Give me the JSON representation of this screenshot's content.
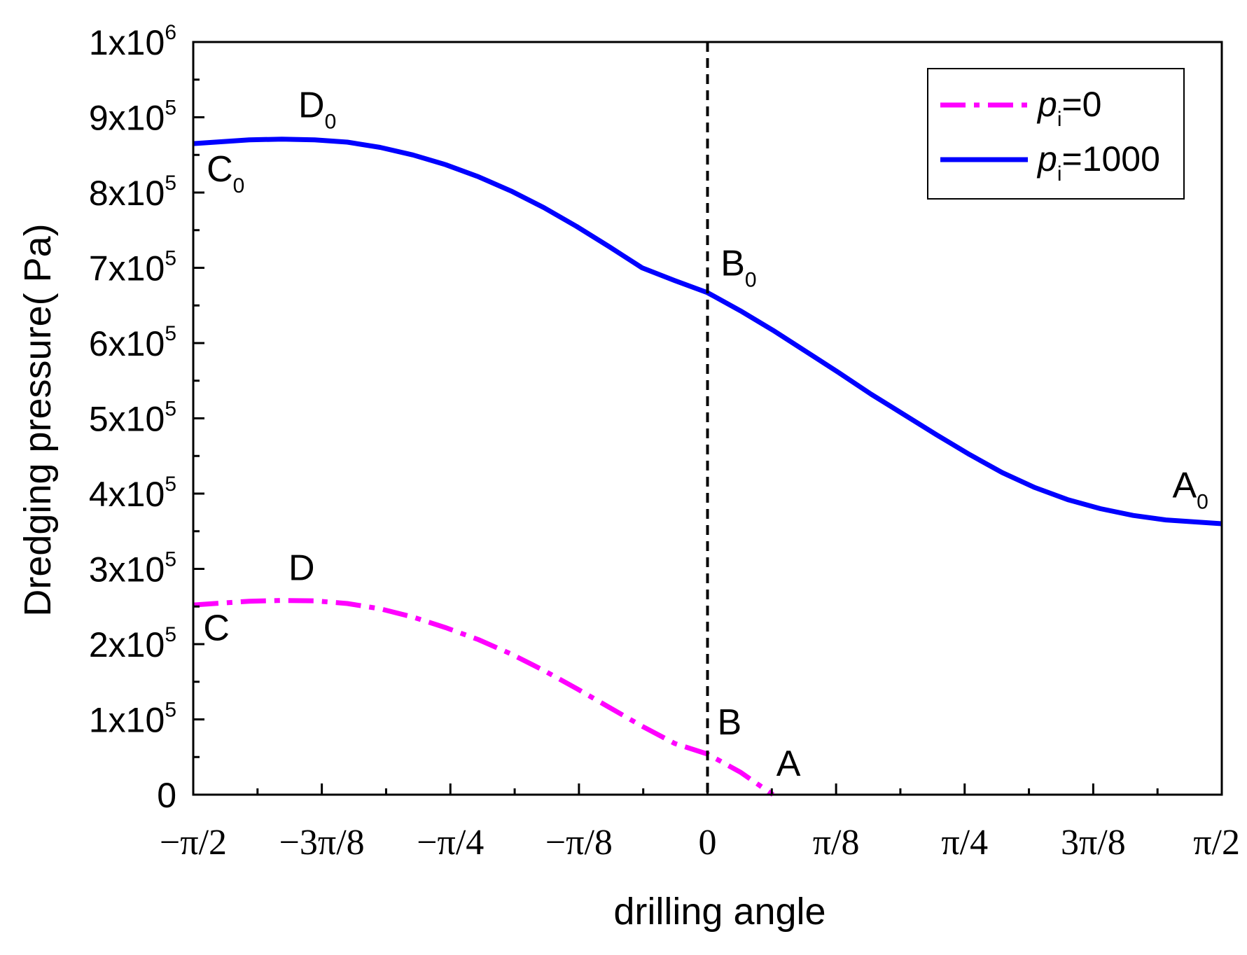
{
  "chart_data": {
    "type": "line",
    "xlabel": "drilling angle",
    "ylabel": "Dredging pressure( Pa)",
    "xlim": [
      -1.5708,
      1.5708
    ],
    "ylim": [
      0,
      1000000
    ],
    "x_ticks": [
      {
        "value": -1.5708,
        "label": "−π/2"
      },
      {
        "value": -1.1781,
        "label": "−3π/8"
      },
      {
        "value": -0.7854,
        "label": "−π/4"
      },
      {
        "value": -0.3927,
        "label": "−π/8"
      },
      {
        "value": 0,
        "label": "0"
      },
      {
        "value": 0.3927,
        "label": "π/8"
      },
      {
        "value": 0.7854,
        "label": "π/4"
      },
      {
        "value": 1.1781,
        "label": "3π/8"
      },
      {
        "value": 1.5708,
        "label": "π/2"
      }
    ],
    "y_ticks": [
      {
        "value": 0,
        "mantissa": "0",
        "exp": ""
      },
      {
        "value": 100000,
        "mantissa": "1x10",
        "exp": "5"
      },
      {
        "value": 200000,
        "mantissa": "2x10",
        "exp": "5"
      },
      {
        "value": 300000,
        "mantissa": "3x10",
        "exp": "5"
      },
      {
        "value": 400000,
        "mantissa": "4x10",
        "exp": "5"
      },
      {
        "value": 500000,
        "mantissa": "5x10",
        "exp": "5"
      },
      {
        "value": 600000,
        "mantissa": "6x10",
        "exp": "5"
      },
      {
        "value": 700000,
        "mantissa": "7x10",
        "exp": "5"
      },
      {
        "value": 800000,
        "mantissa": "8x10",
        "exp": "5"
      },
      {
        "value": 900000,
        "mantissa": "9x10",
        "exp": "5"
      },
      {
        "value": 1000000,
        "mantissa": "1x10",
        "exp": "6"
      }
    ],
    "vline": {
      "x": 0,
      "style": "dashed",
      "color": "#000000"
    },
    "legend": {
      "position": "top-right"
    },
    "series": [
      {
        "name_base": "p",
        "name_sub": "i",
        "name_suffix": "=0",
        "color": "#ff00ff",
        "style": "dash-dot",
        "x": [
          -1.5708,
          -1.4,
          -1.3,
          -1.2,
          -1.1,
          -1.0,
          -0.9,
          -0.8,
          -0.7,
          -0.6,
          -0.5,
          -0.4,
          -0.3,
          -0.2,
          -0.1,
          0.0,
          0.1,
          0.2
        ],
        "y": [
          252000,
          257000,
          258000,
          257500,
          254000,
          247000,
          236000,
          222000,
          206000,
          187000,
          165000,
          141000,
          116000,
          91000,
          68000,
          54000,
          30000,
          0
        ]
      },
      {
        "name_base": "p",
        "name_sub": "i",
        "name_suffix": "=1000",
        "color": "#0000ff",
        "style": "solid",
        "x": [
          -1.5708,
          -1.4,
          -1.3,
          -1.2,
          -1.1,
          -1.0,
          -0.9,
          -0.8,
          -0.7,
          -0.6,
          -0.5,
          -0.4,
          -0.3,
          -0.2,
          -0.1,
          0.0,
          0.1,
          0.2,
          0.3,
          0.4,
          0.5,
          0.6,
          0.7,
          0.8,
          0.9,
          1.0,
          1.1,
          1.2,
          1.3,
          1.4,
          1.5708
        ],
        "y": [
          865000,
          870000,
          871000,
          870000,
          867000,
          860000,
          850000,
          837000,
          821000,
          802000,
          780000,
          755000,
          728000,
          700000,
          683000,
          667000,
          643000,
          617000,
          589000,
          561000,
          532000,
          505000,
          478000,
          452000,
          428000,
          408000,
          392000,
          380000,
          371000,
          365000,
          360000
        ]
      }
    ],
    "annotations": [
      {
        "text": "D",
        "sub": "0",
        "x": -1.25,
        "y": 900000
      },
      {
        "text": "C",
        "sub": "0",
        "x": -1.53,
        "y": 815000
      },
      {
        "text": "B",
        "sub": "0",
        "x": 0.04,
        "y": 690000
      },
      {
        "text": "A",
        "sub": "0",
        "x": 1.42,
        "y": 395000
      },
      {
        "text": "D",
        "sub": "",
        "x": -1.28,
        "y": 285000
      },
      {
        "text": "C",
        "sub": "",
        "x": -1.54,
        "y": 205000
      },
      {
        "text": "B",
        "sub": "",
        "x": 0.03,
        "y": 80000
      },
      {
        "text": "A",
        "sub": "",
        "x": 0.21,
        "y": 25000
      }
    ]
  }
}
